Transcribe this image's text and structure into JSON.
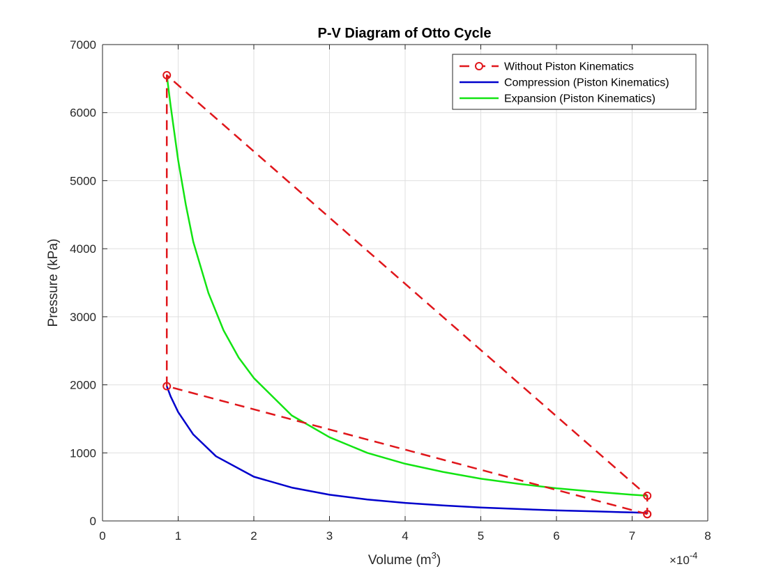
{
  "chart_data": {
    "type": "line",
    "title": "P-V Diagram of Otto Cycle",
    "xlabel_base": "Volume (m",
    "xlabel_sup": "3",
    "xlabel_end": ")",
    "ylabel": "Pressure (kPa)",
    "x_exponent_base": "×10",
    "x_exponent_power": "-4",
    "xlim": [
      0,
      8
    ],
    "ylim": [
      0,
      7000
    ],
    "xticks": [
      0,
      1,
      2,
      3,
      4,
      5,
      6,
      7,
      8
    ],
    "yticks": [
      0,
      1000,
      2000,
      3000,
      4000,
      5000,
      6000,
      7000
    ],
    "grid": true,
    "legend_position": "top-right",
    "series": [
      {
        "name": "Without Piston Kinematics",
        "color": "#e0161b",
        "style": "dashed-circle-markers",
        "x": [
          7.2,
          0.85,
          0.85,
          7.2,
          7.2
        ],
        "y": [
          100,
          1980,
          6550,
          370,
          100
        ]
      },
      {
        "name": "Compression (Piston Kinematics)",
        "color": "#0000cc",
        "style": "solid",
        "x": [
          0.85,
          0.9,
          1.0,
          1.2,
          1.5,
          2.0,
          2.5,
          3.0,
          3.5,
          4.0,
          4.5,
          5.0,
          5.5,
          6.0,
          6.5,
          7.0,
          7.2
        ],
        "y": [
          1980,
          1830,
          1600,
          1270,
          950,
          650,
          490,
          385,
          315,
          265,
          228,
          198,
          175,
          155,
          140,
          125,
          118
        ]
      },
      {
        "name": "Expansion (Piston Kinematics)",
        "color": "#12e412",
        "style": "solid",
        "x": [
          0.85,
          0.9,
          1.0,
          1.1,
          1.2,
          1.4,
          1.6,
          1.8,
          2.0,
          2.5,
          3.0,
          3.5,
          4.0,
          4.5,
          5.0,
          5.5,
          6.0,
          6.5,
          7.0,
          7.2
        ],
        "y": [
          6550,
          6100,
          5300,
          4650,
          4100,
          3350,
          2800,
          2400,
          2100,
          1550,
          1230,
          1000,
          840,
          720,
          620,
          545,
          480,
          430,
          385,
          370
        ]
      }
    ]
  }
}
